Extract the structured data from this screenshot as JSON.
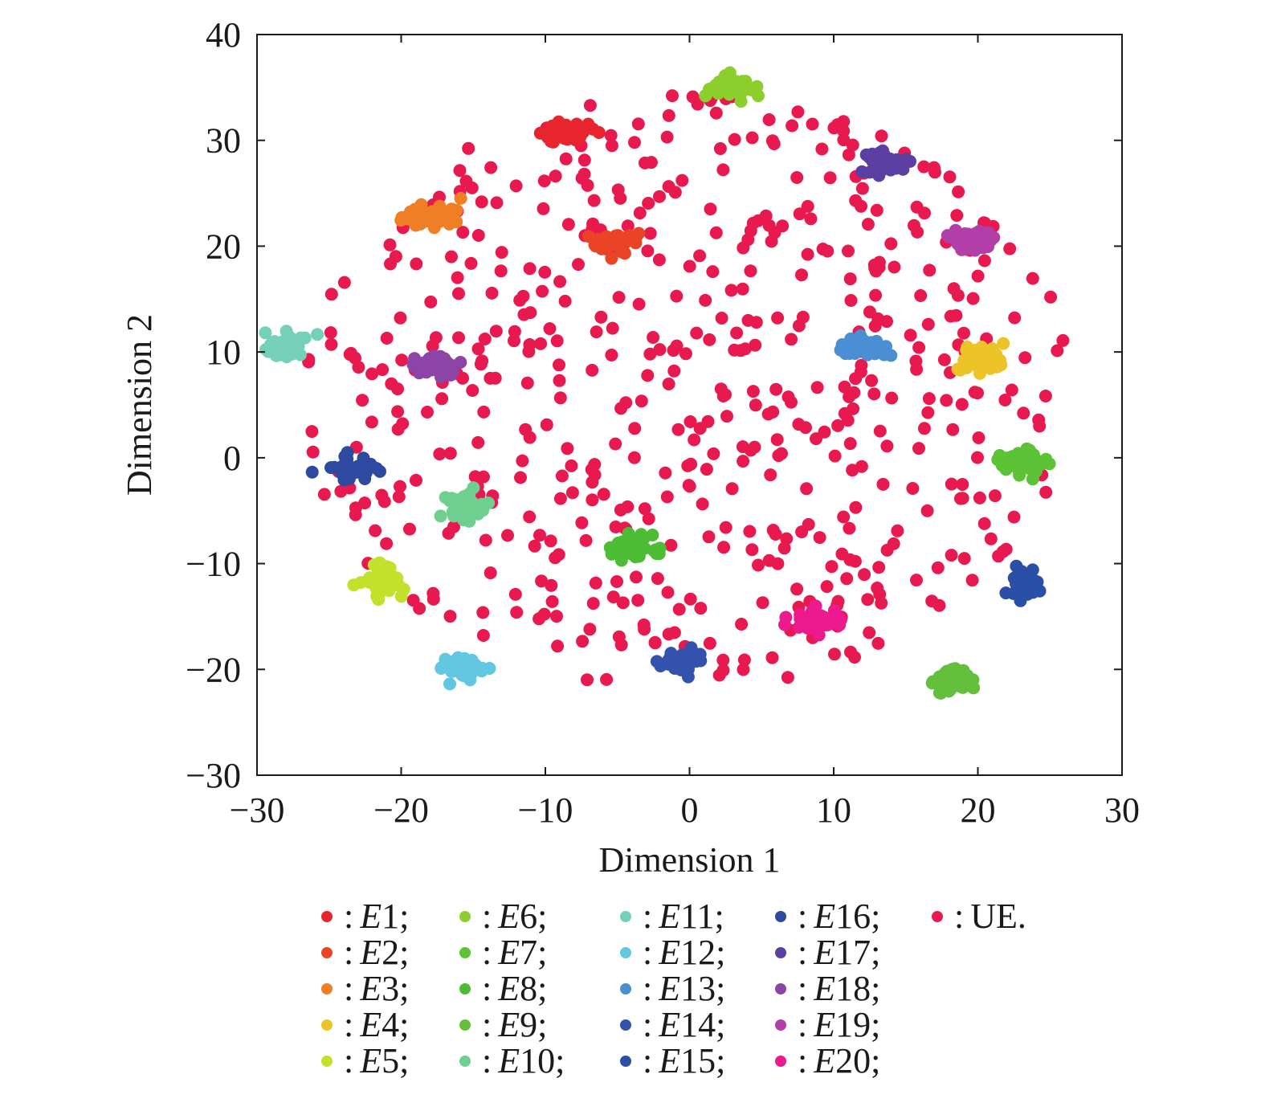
{
  "chart_data": {
    "type": "scatter",
    "xlabel": "Dimension 1",
    "ylabel": "Dimension 2",
    "xlim": [
      -30,
      30
    ],
    "ylim": [
      -30,
      40
    ],
    "xticks": [
      -30,
      -20,
      -10,
      0,
      10,
      20,
      30
    ],
    "yticks": [
      -30,
      -20,
      -10,
      0,
      10,
      20,
      30,
      40
    ],
    "xtick_labels": [
      "−30",
      "−20",
      "−10",
      "0",
      "10",
      "20",
      "30"
    ],
    "ytick_labels": [
      "−30",
      "−20",
      "−10",
      "0",
      "10",
      "20",
      "30",
      "40"
    ],
    "legend_placement": "bottom",
    "ue_color": "#e8194f",
    "ue_count": 560,
    "ue_seed": 7,
    "clusters": [
      {
        "name": "E1",
        "label": "E1;",
        "color": "#e8252d",
        "center": [
          -8.5,
          30.8
        ],
        "spread": [
          1.6,
          0.8
        ],
        "count": 45
      },
      {
        "name": "E2",
        "label": "E2;",
        "color": "#ea4325",
        "center": [
          -5.0,
          20.5
        ],
        "spread": [
          1.6,
          1.0
        ],
        "count": 45
      },
      {
        "name": "E3",
        "label": "E3;",
        "color": "#f07e24",
        "center": [
          -18.0,
          22.8
        ],
        "spread": [
          1.8,
          1.0
        ],
        "count": 45
      },
      {
        "name": "E4",
        "label": "E4;",
        "color": "#edc428",
        "center": [
          20.3,
          9.5
        ],
        "spread": [
          1.4,
          1.4
        ],
        "count": 45
      },
      {
        "name": "E5",
        "label": "E5;",
        "color": "#c3e02a",
        "center": [
          -21.3,
          -11.5
        ],
        "spread": [
          1.4,
          1.4
        ],
        "count": 45
      },
      {
        "name": "E6",
        "label": "E6;",
        "color": "#8ccf2d",
        "center": [
          2.7,
          35.0
        ],
        "spread": [
          1.6,
          1.0
        ],
        "count": 45
      },
      {
        "name": "E7",
        "label": "E7;",
        "color": "#5cc236",
        "center": [
          23.0,
          -0.5
        ],
        "spread": [
          1.5,
          1.2
        ],
        "count": 45
      },
      {
        "name": "E8",
        "label": "E8;",
        "color": "#4cbc34",
        "center": [
          -3.8,
          -8.5
        ],
        "spread": [
          1.5,
          1.0
        ],
        "count": 45
      },
      {
        "name": "E9",
        "label": "E9;",
        "color": "#63bf3c",
        "center": [
          18.3,
          -21.0
        ],
        "spread": [
          1.2,
          1.2
        ],
        "count": 45
      },
      {
        "name": "E10",
        "label": "E10;",
        "color": "#6fcf8e",
        "center": [
          -15.5,
          -4.5
        ],
        "spread": [
          1.6,
          1.5
        ],
        "count": 45
      },
      {
        "name": "E11",
        "label": "E11;",
        "color": "#74d0b8",
        "center": [
          -28.0,
          10.8
        ],
        "spread": [
          1.3,
          1.2
        ],
        "count": 45
      },
      {
        "name": "E12",
        "label": "E12;",
        "color": "#62c8e2",
        "center": [
          -15.7,
          -19.8
        ],
        "spread": [
          1.3,
          1.0
        ],
        "count": 45
      },
      {
        "name": "E13",
        "label": "E13;",
        "color": "#4a8fd4",
        "center": [
          12.0,
          10.5
        ],
        "spread": [
          1.5,
          1.0
        ],
        "count": 45
      },
      {
        "name": "E14",
        "label": "E14;",
        "color": "#3352ad",
        "center": [
          -0.5,
          -19.3
        ],
        "spread": [
          1.3,
          0.9
        ],
        "count": 45
      },
      {
        "name": "E15",
        "label": "E15;",
        "color": "#2a4fa6",
        "center": [
          23.2,
          -11.8
        ],
        "spread": [
          1.2,
          1.2
        ],
        "count": 45
      },
      {
        "name": "E16",
        "label": "E16;",
        "color": "#2d4aa0",
        "center": [
          -23.5,
          -1.0
        ],
        "spread": [
          1.5,
          1.0
        ],
        "count": 40
      },
      {
        "name": "E17",
        "label": "E17;",
        "color": "#5b3fa3",
        "center": [
          13.5,
          27.8
        ],
        "spread": [
          1.6,
          0.9
        ],
        "count": 45
      },
      {
        "name": "E18",
        "label": "E18;",
        "color": "#8c45a6",
        "center": [
          -17.5,
          8.5
        ],
        "spread": [
          1.4,
          0.9
        ],
        "count": 45
      },
      {
        "name": "E19",
        "label": "E19;",
        "color": "#b23fa7",
        "center": [
          19.5,
          20.5
        ],
        "spread": [
          1.4,
          1.0
        ],
        "count": 45
      },
      {
        "name": "E20",
        "label": "E20;",
        "color": "#ec1a8c",
        "center": [
          8.7,
          -15.2
        ],
        "spread": [
          1.5,
          1.0
        ],
        "count": 45
      }
    ],
    "legend": [
      {
        "name": "E1",
        "label": "E1;",
        "color": "#e8252d"
      },
      {
        "name": "E2",
        "label": "E2;",
        "color": "#ea4325"
      },
      {
        "name": "E3",
        "label": "E3;",
        "color": "#f07e24"
      },
      {
        "name": "E4",
        "label": "E4;",
        "color": "#edc428"
      },
      {
        "name": "E5",
        "label": "E5;",
        "color": "#c3e02a"
      },
      {
        "name": "E6",
        "label": "E6;",
        "color": "#8ccf2d"
      },
      {
        "name": "E7",
        "label": "E7;",
        "color": "#5cc236"
      },
      {
        "name": "E8",
        "label": "E8;",
        "color": "#4cbc34"
      },
      {
        "name": "E9",
        "label": "E9;",
        "color": "#63bf3c"
      },
      {
        "name": "E10",
        "label": "E10;",
        "color": "#6fcf8e"
      },
      {
        "name": "E11",
        "label": "E11;",
        "color": "#74d0b8"
      },
      {
        "name": "E12",
        "label": "E12;",
        "color": "#62c8e2"
      },
      {
        "name": "E13",
        "label": "E13;",
        "color": "#4a8fd4"
      },
      {
        "name": "E14",
        "label": "E14;",
        "color": "#3352ad"
      },
      {
        "name": "E15",
        "label": "E15;",
        "color": "#2a4fa6"
      },
      {
        "name": "E16",
        "label": "E16;",
        "color": "#2d4aa0"
      },
      {
        "name": "E17",
        "label": "E17;",
        "color": "#5b3fa3"
      },
      {
        "name": "E18",
        "label": "E18;",
        "color": "#8c45a6"
      },
      {
        "name": "E19",
        "label": "E19;",
        "color": "#b23fa7"
      },
      {
        "name": "E20",
        "label": "E20;",
        "color": "#ec1a8c"
      },
      {
        "name": "UE",
        "label": "UE.",
        "color": "#e8194f"
      }
    ],
    "legend_separator": ":"
  }
}
